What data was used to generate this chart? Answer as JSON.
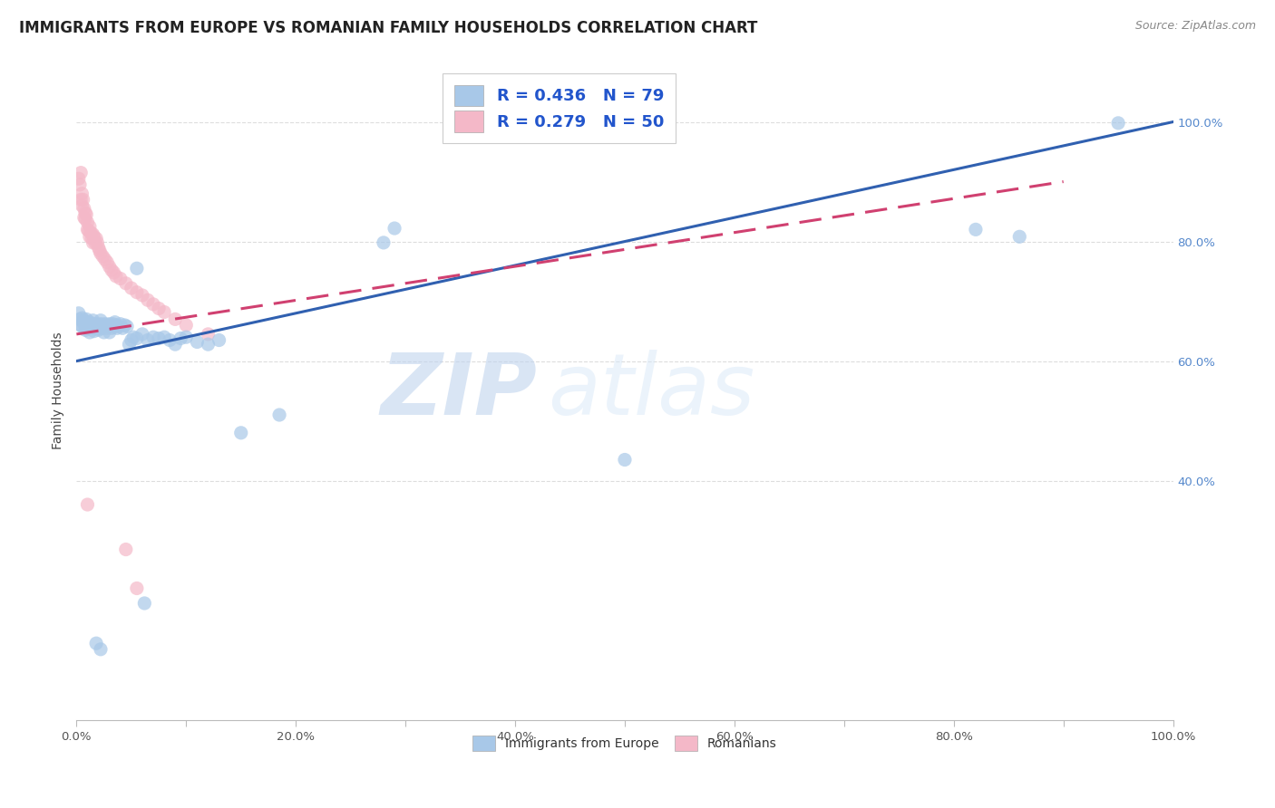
{
  "title": "IMMIGRANTS FROM EUROPE VS ROMANIAN FAMILY HOUSEHOLDS CORRELATION CHART",
  "source": "Source: ZipAtlas.com",
  "ylabel": "Family Households",
  "legend_blue_label": "R = 0.436   N = 79",
  "legend_pink_label": "R = 0.279   N = 50",
  "legend_bottom_blue": "Immigrants from Europe",
  "legend_bottom_pink": "Romanians",
  "watermark_zip": "ZIP",
  "watermark_atlas": "atlas",
  "blue_color": "#a8c8e8",
  "pink_color": "#f4b8c8",
  "blue_line_color": "#3060b0",
  "pink_line_color": "#d04070",
  "pink_line_dash": [
    6,
    3
  ],
  "blue_scatter": [
    [
      0.002,
      0.68
    ],
    [
      0.003,
      0.67
    ],
    [
      0.004,
      0.66
    ],
    [
      0.005,
      0.672
    ],
    [
      0.005,
      0.658
    ],
    [
      0.006,
      0.665
    ],
    [
      0.007,
      0.668
    ],
    [
      0.008,
      0.66
    ],
    [
      0.008,
      0.652
    ],
    [
      0.009,
      0.67
    ],
    [
      0.01,
      0.655
    ],
    [
      0.01,
      0.662
    ],
    [
      0.011,
      0.658
    ],
    [
      0.012,
      0.665
    ],
    [
      0.012,
      0.648
    ],
    [
      0.013,
      0.66
    ],
    [
      0.014,
      0.655
    ],
    [
      0.014,
      0.662
    ],
    [
      0.015,
      0.658
    ],
    [
      0.015,
      0.668
    ],
    [
      0.016,
      0.655
    ],
    [
      0.016,
      0.65
    ],
    [
      0.017,
      0.66
    ],
    [
      0.018,
      0.658
    ],
    [
      0.018,
      0.662
    ],
    [
      0.019,
      0.655
    ],
    [
      0.02,
      0.66
    ],
    [
      0.02,
      0.652
    ],
    [
      0.021,
      0.658
    ],
    [
      0.022,
      0.662
    ],
    [
      0.022,
      0.668
    ],
    [
      0.023,
      0.655
    ],
    [
      0.024,
      0.66
    ],
    [
      0.025,
      0.658
    ],
    [
      0.025,
      0.648
    ],
    [
      0.026,
      0.662
    ],
    [
      0.027,
      0.655
    ],
    [
      0.028,
      0.66
    ],
    [
      0.029,
      0.658
    ],
    [
      0.03,
      0.662
    ],
    [
      0.03,
      0.648
    ],
    [
      0.032,
      0.655
    ],
    [
      0.033,
      0.662
    ],
    [
      0.034,
      0.658
    ],
    [
      0.035,
      0.665
    ],
    [
      0.036,
      0.66
    ],
    [
      0.037,
      0.655
    ],
    [
      0.038,
      0.658
    ],
    [
      0.04,
      0.662
    ],
    [
      0.042,
      0.655
    ],
    [
      0.044,
      0.66
    ],
    [
      0.046,
      0.658
    ],
    [
      0.048,
      0.628
    ],
    [
      0.05,
      0.635
    ],
    [
      0.052,
      0.64
    ],
    [
      0.055,
      0.638
    ],
    [
      0.06,
      0.645
    ],
    [
      0.065,
      0.635
    ],
    [
      0.07,
      0.64
    ],
    [
      0.075,
      0.638
    ],
    [
      0.08,
      0.64
    ],
    [
      0.085,
      0.635
    ],
    [
      0.09,
      0.628
    ],
    [
      0.095,
      0.638
    ],
    [
      0.1,
      0.64
    ],
    [
      0.11,
      0.632
    ],
    [
      0.12,
      0.628
    ],
    [
      0.13,
      0.635
    ],
    [
      0.055,
      0.755
    ],
    [
      0.062,
      0.195
    ],
    [
      0.15,
      0.48
    ],
    [
      0.185,
      0.51
    ],
    [
      0.28,
      0.798
    ],
    [
      0.29,
      0.822
    ],
    [
      0.5,
      0.435
    ],
    [
      0.82,
      0.82
    ],
    [
      0.95,
      0.998
    ],
    [
      0.86,
      0.808
    ],
    [
      0.018,
      0.128
    ],
    [
      0.022,
      0.118
    ]
  ],
  "pink_scatter": [
    [
      0.002,
      0.905
    ],
    [
      0.003,
      0.895
    ],
    [
      0.004,
      0.915
    ],
    [
      0.004,
      0.87
    ],
    [
      0.005,
      0.88
    ],
    [
      0.005,
      0.86
    ],
    [
      0.006,
      0.87
    ],
    [
      0.007,
      0.84
    ],
    [
      0.007,
      0.855
    ],
    [
      0.008,
      0.848
    ],
    [
      0.008,
      0.838
    ],
    [
      0.009,
      0.845
    ],
    [
      0.01,
      0.82
    ],
    [
      0.01,
      0.832
    ],
    [
      0.011,
      0.818
    ],
    [
      0.012,
      0.825
    ],
    [
      0.012,
      0.808
    ],
    [
      0.013,
      0.815
    ],
    [
      0.014,
      0.805
    ],
    [
      0.015,
      0.812
    ],
    [
      0.015,
      0.798
    ],
    [
      0.016,
      0.808
    ],
    [
      0.017,
      0.798
    ],
    [
      0.018,
      0.805
    ],
    [
      0.019,
      0.798
    ],
    [
      0.02,
      0.79
    ],
    [
      0.021,
      0.785
    ],
    [
      0.022,
      0.78
    ],
    [
      0.024,
      0.775
    ],
    [
      0.026,
      0.77
    ],
    [
      0.028,
      0.765
    ],
    [
      0.03,
      0.758
    ],
    [
      0.032,
      0.752
    ],
    [
      0.034,
      0.748
    ],
    [
      0.036,
      0.742
    ],
    [
      0.04,
      0.738
    ],
    [
      0.045,
      0.73
    ],
    [
      0.05,
      0.722
    ],
    [
      0.055,
      0.715
    ],
    [
      0.06,
      0.71
    ],
    [
      0.065,
      0.702
    ],
    [
      0.07,
      0.695
    ],
    [
      0.075,
      0.688
    ],
    [
      0.08,
      0.682
    ],
    [
      0.09,
      0.67
    ],
    [
      0.1,
      0.66
    ],
    [
      0.12,
      0.645
    ],
    [
      0.01,
      0.36
    ],
    [
      0.045,
      0.285
    ],
    [
      0.055,
      0.22
    ]
  ],
  "blue_trendline": [
    0.0,
    1.0,
    0.6,
    1.0
  ],
  "pink_trendline": [
    0.0,
    0.9,
    0.645,
    0.9
  ],
  "xlim": [
    0.0,
    1.0
  ],
  "ylim": [
    0.0,
    1.1
  ],
  "xtick_positions": [
    0.0,
    0.1,
    0.2,
    0.3,
    0.4,
    0.5,
    0.6,
    0.7,
    0.8,
    0.9,
    1.0
  ],
  "xtick_labels_show": [
    true,
    false,
    true,
    false,
    true,
    false,
    true,
    false,
    true,
    false,
    true
  ],
  "ytick_positions": [
    0.4,
    0.6,
    0.8,
    1.0
  ],
  "background_color": "#ffffff",
  "grid_color": "#dddddd",
  "title_fontsize": 12,
  "source_fontsize": 9,
  "legend_fontsize": 13
}
